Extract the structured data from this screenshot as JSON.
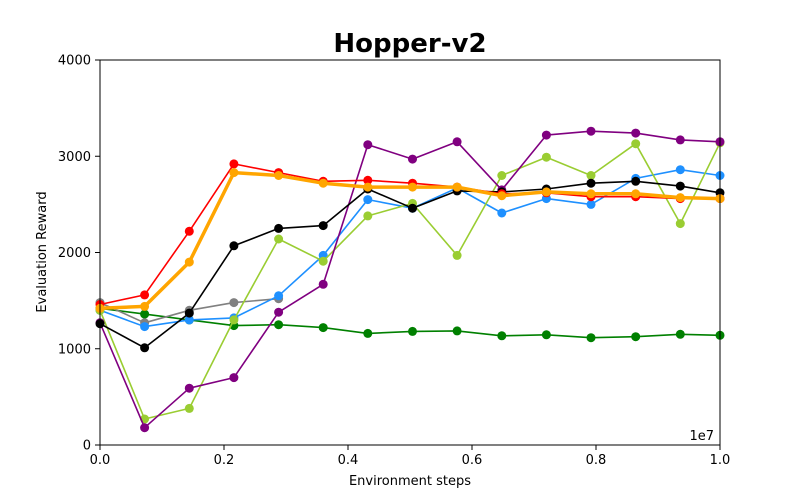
{
  "chart_data": {
    "type": "line",
    "title": "Hopper-v2",
    "xlabel": "Environment steps",
    "ylabel": "Evaluation Reward",
    "x_offset_label": "1e7",
    "xlim": [
      0.0,
      1.0
    ],
    "ylim": [
      0,
      4000
    ],
    "x_ticks": [
      "0.0",
      "0.2",
      "0.4",
      "0.6",
      "0.8",
      "1.0"
    ],
    "y_ticks": [
      "0",
      "1000",
      "2000",
      "3000",
      "4000"
    ],
    "grid": false,
    "series": [
      {
        "color": "#008000",
        "x": [
          0.0,
          0.072,
          0.144,
          0.216,
          0.288,
          0.36,
          0.432,
          0.504,
          0.576,
          0.648,
          0.72,
          0.792,
          0.864,
          0.936,
          1.0
        ],
        "y": [
          1420,
          1360,
          1300,
          1240,
          1250,
          1220,
          1160,
          1180,
          1185,
          1135,
          1145,
          1115,
          1125,
          1150,
          1140
        ]
      },
      {
        "color": "#808080",
        "x": [
          0.0,
          0.072,
          0.144,
          0.216,
          0.288
        ],
        "y": [
          1480,
          1270,
          1400,
          1480,
          1520
        ]
      },
      {
        "color": "#1E90FF",
        "x": [
          0.0,
          0.072,
          0.144,
          0.216,
          0.288,
          0.36,
          0.432,
          0.504,
          0.576,
          0.648,
          0.72,
          0.792,
          0.864,
          0.936,
          1.0
        ],
        "y": [
          1400,
          1230,
          1300,
          1320,
          1550,
          1970,
          2550,
          2460,
          2670,
          2410,
          2560,
          2500,
          2770,
          2860,
          2800
        ]
      },
      {
        "color": "#9ACD32",
        "x": [
          0.0,
          0.072,
          0.144,
          0.216,
          0.288,
          0.36,
          0.432,
          0.504,
          0.576,
          0.648,
          0.72,
          0.792,
          0.864,
          0.936,
          1.0
        ],
        "y": [
          1400,
          270,
          380,
          1300,
          2140,
          1910,
          2380,
          2510,
          1970,
          2800,
          2990,
          2800,
          3130,
          2300,
          3140
        ]
      },
      {
        "color": "#800080",
        "x": [
          0.0,
          0.072,
          0.144,
          0.216,
          0.288,
          0.36,
          0.432,
          0.504,
          0.576,
          0.648,
          0.72,
          0.792,
          0.864,
          0.936,
          1.0
        ],
        "y": [
          1270,
          180,
          590,
          700,
          1380,
          1670,
          3120,
          2970,
          3150,
          2650,
          3220,
          3260,
          3240,
          3170,
          3150
        ]
      },
      {
        "color": "#000000",
        "x": [
          0.0,
          0.072,
          0.144,
          0.216,
          0.288,
          0.36,
          0.432,
          0.504,
          0.576,
          0.648,
          0.72,
          0.792,
          0.864,
          0.936,
          1.0
        ],
        "y": [
          1260,
          1010,
          1370,
          2070,
          2250,
          2280,
          2660,
          2460,
          2640,
          2630,
          2660,
          2720,
          2740,
          2690,
          2620
        ]
      },
      {
        "color": "#FF0000",
        "x": [
          0.0,
          0.072,
          0.144,
          0.216,
          0.288,
          0.36,
          0.432,
          0.504,
          0.576,
          0.648,
          0.72,
          0.792,
          0.864,
          0.936,
          1.0
        ],
        "y": [
          1460,
          1560,
          2220,
          2920,
          2830,
          2740,
          2750,
          2720,
          2680,
          2610,
          2620,
          2580,
          2580,
          2560,
          2560
        ]
      },
      {
        "color": "#FFA500",
        "thick": true,
        "x": [
          0.0,
          0.072,
          0.144,
          0.216,
          0.288,
          0.36,
          0.432,
          0.504,
          0.576,
          0.648,
          0.72,
          0.792,
          0.864,
          0.936,
          1.0
        ],
        "y": [
          1420,
          1440,
          1900,
          2830,
          2800,
          2720,
          2680,
          2680,
          2680,
          2590,
          2630,
          2610,
          2610,
          2570,
          2560
        ]
      }
    ]
  }
}
